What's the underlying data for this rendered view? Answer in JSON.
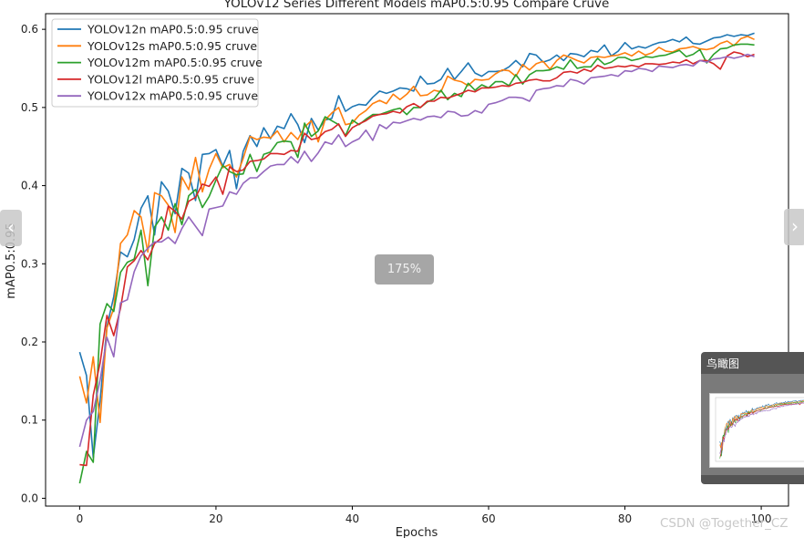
{
  "chart_data": {
    "type": "line",
    "title": "YOLOv12 Series Different Models mAP0.5:0.95 Compare Cruve",
    "xlabel": "Epochs",
    "ylabel": "mAP0.5:0.95",
    "xlim": [
      -5,
      104
    ],
    "ylim": [
      -0.01,
      0.62
    ],
    "xticks": [
      0,
      20,
      40,
      60,
      80,
      100
    ],
    "yticks": [
      0.0,
      0.1,
      0.2,
      0.3,
      0.4,
      0.5,
      0.6
    ],
    "xtick_labels": [
      "0",
      "20",
      "40",
      "60",
      "80",
      "100"
    ],
    "ytick_labels": [
      "0.0",
      "0.1",
      "0.2",
      "0.3",
      "0.4",
      "0.5",
      "0.6"
    ],
    "legend_position": "top-left",
    "grid": false,
    "x": [
      0,
      1,
      2,
      3,
      4,
      5,
      6,
      7,
      8,
      9,
      10,
      11,
      12,
      13,
      14,
      15,
      16,
      17,
      18,
      19,
      20,
      21,
      22,
      23,
      24,
      25,
      26,
      27,
      28,
      29,
      30,
      31,
      32,
      33,
      34,
      35,
      36,
      37,
      38,
      39,
      40,
      41,
      42,
      43,
      44,
      45,
      46,
      47,
      48,
      49,
      50,
      51,
      52,
      53,
      54,
      55,
      56,
      57,
      58,
      59,
      60,
      61,
      62,
      63,
      64,
      65,
      66,
      67,
      68,
      69,
      70,
      71,
      72,
      73,
      74,
      75,
      76,
      77,
      78,
      79,
      80,
      81,
      82,
      83,
      84,
      85,
      86,
      87,
      88,
      89,
      90,
      91,
      92,
      93,
      94,
      95,
      96,
      97,
      98,
      99
    ],
    "series": [
      {
        "name": "YOLOv12n mAP0.5:0.95 cruve",
        "color": "#1f77b4",
        "values": [
          0.187,
          0.157,
          0.052,
          0.125,
          0.22,
          0.258,
          0.315,
          0.309,
          0.331,
          0.371,
          0.387,
          0.337,
          0.405,
          0.393,
          0.364,
          0.422,
          0.416,
          0.381,
          0.44,
          0.441,
          0.446,
          0.425,
          0.445,
          0.396,
          0.444,
          0.464,
          0.45,
          0.474,
          0.46,
          0.476,
          0.473,
          0.492,
          0.478,
          0.455,
          0.486,
          0.471,
          0.484,
          0.486,
          0.515,
          0.495,
          0.501,
          0.504,
          0.503,
          0.513,
          0.521,
          0.518,
          0.521,
          0.525,
          0.524,
          0.521,
          0.54,
          0.53,
          0.531,
          0.536,
          0.55,
          0.536,
          0.546,
          0.557,
          0.544,
          0.54,
          0.546,
          0.546,
          0.547,
          0.552,
          0.56,
          0.552,
          0.569,
          0.567,
          0.558,
          0.561,
          0.567,
          0.56,
          0.569,
          0.568,
          0.565,
          0.573,
          0.571,
          0.58,
          0.566,
          0.572,
          0.583,
          0.575,
          0.578,
          0.576,
          0.58,
          0.583,
          0.584,
          0.587,
          0.584,
          0.59,
          0.582,
          0.581,
          0.585,
          0.589,
          0.59,
          0.593,
          0.591,
          0.593,
          0.592,
          0.595
        ]
      },
      {
        "name": "YOLOv12s mAP0.5:0.95 cruve",
        "color": "#ff7f0e",
        "values": [
          0.156,
          0.122,
          0.181,
          0.097,
          0.218,
          0.243,
          0.326,
          0.337,
          0.368,
          0.36,
          0.315,
          0.391,
          0.387,
          0.375,
          0.34,
          0.411,
          0.395,
          0.436,
          0.392,
          0.421,
          0.441,
          0.423,
          0.427,
          0.411,
          0.435,
          0.463,
          0.459,
          0.462,
          0.461,
          0.47,
          0.456,
          0.468,
          0.459,
          0.475,
          0.483,
          0.456,
          0.484,
          0.493,
          0.5,
          0.478,
          0.48,
          0.49,
          0.496,
          0.505,
          0.509,
          0.505,
          0.517,
          0.51,
          0.517,
          0.527,
          0.515,
          0.516,
          0.522,
          0.52,
          0.54,
          0.535,
          0.533,
          0.528,
          0.536,
          0.535,
          0.536,
          0.543,
          0.548,
          0.547,
          0.54,
          0.555,
          0.548,
          0.556,
          0.559,
          0.549,
          0.56,
          0.567,
          0.564,
          0.56,
          0.557,
          0.564,
          0.565,
          0.564,
          0.566,
          0.567,
          0.57,
          0.566,
          0.572,
          0.567,
          0.57,
          0.577,
          0.572,
          0.571,
          0.575,
          0.576,
          0.578,
          0.575,
          0.574,
          0.576,
          0.582,
          0.585,
          0.579,
          0.588,
          0.591,
          0.587
        ]
      },
      {
        "name": "YOLOv12m mAP0.5:0.95 cruve",
        "color": "#2ca02c",
        "values": [
          0.019,
          0.06,
          0.046,
          0.223,
          0.249,
          0.239,
          0.289,
          0.302,
          0.306,
          0.343,
          0.272,
          0.347,
          0.36,
          0.343,
          0.377,
          0.35,
          0.387,
          0.395,
          0.372,
          0.386,
          0.407,
          0.426,
          0.418,
          0.414,
          0.415,
          0.44,
          0.418,
          0.44,
          0.443,
          0.455,
          0.457,
          0.456,
          0.436,
          0.48,
          0.463,
          0.47,
          0.488,
          0.483,
          0.478,
          0.464,
          0.484,
          0.478,
          0.485,
          0.491,
          0.491,
          0.494,
          0.497,
          0.499,
          0.491,
          0.5,
          0.5,
          0.507,
          0.511,
          0.522,
          0.51,
          0.518,
          0.514,
          0.531,
          0.522,
          0.529,
          0.525,
          0.533,
          0.533,
          0.528,
          0.542,
          0.53,
          0.542,
          0.547,
          0.547,
          0.548,
          0.552,
          0.549,
          0.561,
          0.55,
          0.552,
          0.552,
          0.563,
          0.555,
          0.558,
          0.564,
          0.564,
          0.56,
          0.562,
          0.565,
          0.564,
          0.566,
          0.567,
          0.57,
          0.573,
          0.565,
          0.568,
          0.574,
          0.557,
          0.568,
          0.575,
          0.576,
          0.58,
          0.581,
          0.581,
          0.58
        ]
      },
      {
        "name": "YOLOv12l mAP0.5:0.95 cruve",
        "color": "#d62728",
        "values": [
          0.043,
          0.042,
          0.132,
          0.173,
          0.234,
          0.208,
          0.243,
          0.296,
          0.304,
          0.317,
          0.305,
          0.326,
          0.333,
          0.374,
          0.367,
          0.357,
          0.38,
          0.385,
          0.402,
          0.399,
          0.411,
          0.389,
          0.424,
          0.418,
          0.42,
          0.431,
          0.432,
          0.434,
          0.441,
          0.441,
          0.44,
          0.445,
          0.444,
          0.467,
          0.459,
          0.461,
          0.469,
          0.472,
          0.479,
          0.463,
          0.474,
          0.479,
          0.483,
          0.489,
          0.491,
          0.492,
          0.495,
          0.493,
          0.501,
          0.505,
          0.5,
          0.508,
          0.508,
          0.513,
          0.512,
          0.515,
          0.518,
          0.522,
          0.52,
          0.525,
          0.525,
          0.526,
          0.528,
          0.527,
          0.531,
          0.532,
          0.535,
          0.536,
          0.534,
          0.534,
          0.538,
          0.545,
          0.546,
          0.544,
          0.549,
          0.546,
          0.554,
          0.55,
          0.551,
          0.553,
          0.552,
          0.554,
          0.552,
          0.556,
          0.556,
          0.555,
          0.556,
          0.558,
          0.557,
          0.561,
          0.556,
          0.56,
          0.56,
          0.556,
          0.549,
          0.566,
          0.571,
          0.569,
          0.565,
          0.568
        ]
      },
      {
        "name": "YOLOv12x mAP0.5:0.95 cruve",
        "color": "#9467bd",
        "values": [
          0.066,
          0.1,
          0.111,
          0.151,
          0.206,
          0.181,
          0.25,
          0.254,
          0.29,
          0.31,
          0.32,
          0.328,
          0.328,
          0.334,
          0.326,
          0.345,
          0.36,
          0.348,
          0.336,
          0.37,
          0.372,
          0.374,
          0.392,
          0.389,
          0.403,
          0.41,
          0.41,
          0.418,
          0.425,
          0.427,
          0.427,
          0.437,
          0.429,
          0.444,
          0.431,
          0.442,
          0.456,
          0.453,
          0.465,
          0.45,
          0.456,
          0.46,
          0.471,
          0.458,
          0.478,
          0.473,
          0.481,
          0.48,
          0.483,
          0.486,
          0.484,
          0.488,
          0.489,
          0.487,
          0.495,
          0.494,
          0.489,
          0.49,
          0.496,
          0.493,
          0.504,
          0.506,
          0.509,
          0.513,
          0.513,
          0.512,
          0.508,
          0.522,
          0.524,
          0.525,
          0.528,
          0.527,
          0.536,
          0.534,
          0.53,
          0.538,
          0.539,
          0.54,
          0.542,
          0.54,
          0.547,
          0.546,
          0.55,
          0.549,
          0.546,
          0.553,
          0.552,
          0.551,
          0.554,
          0.555,
          0.553,
          0.56,
          0.558,
          0.562,
          0.563,
          0.565,
          0.563,
          0.565,
          0.568,
          0.565
        ]
      }
    ]
  },
  "viewer": {
    "zoom_label": "175%",
    "overview_title": "鸟瞰图",
    "prev_icon": "‹",
    "next_icon": "›",
    "watermark": "CSDN @Together_CZ"
  }
}
